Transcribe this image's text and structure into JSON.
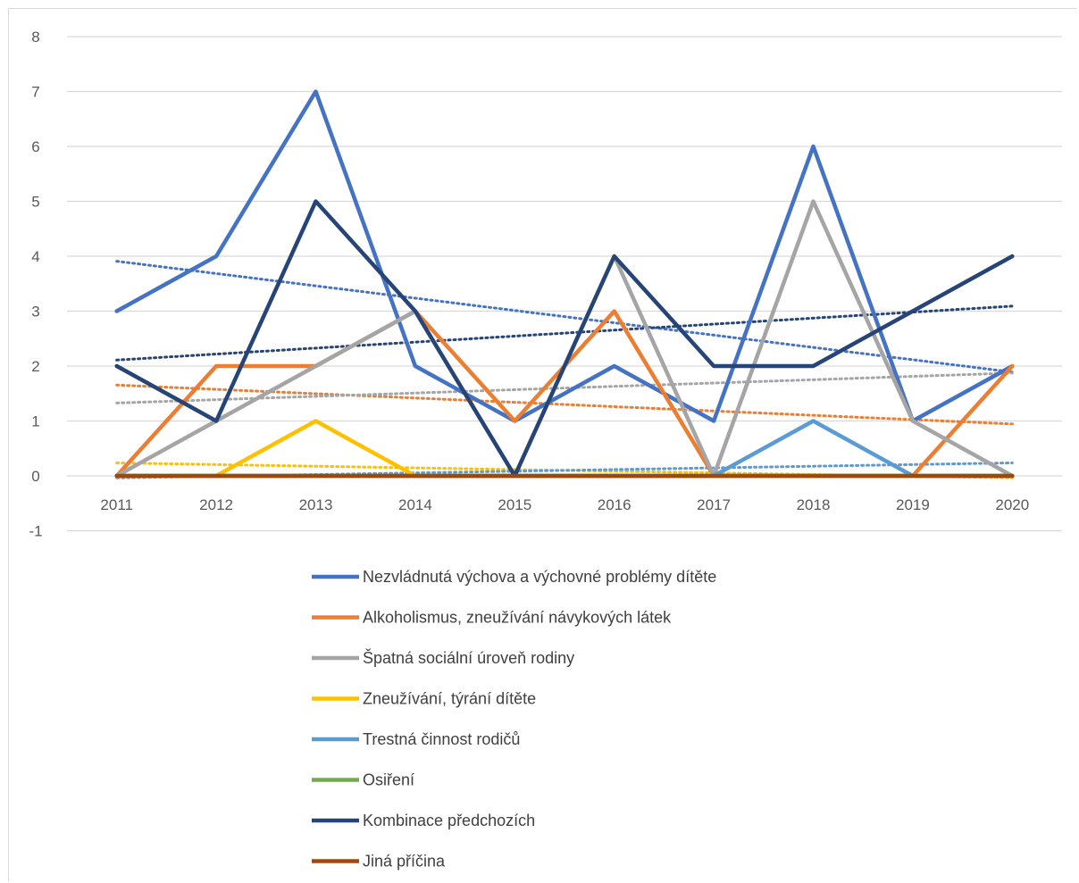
{
  "chart_data": {
    "type": "line",
    "title": "",
    "xlabel": "",
    "ylabel": "",
    "x": [
      "2011",
      "2012",
      "2013",
      "2014",
      "2015",
      "2016",
      "2017",
      "2018",
      "2019",
      "2020"
    ],
    "ylim": [
      -1,
      8
    ],
    "yticks": [
      "-1",
      "0",
      "1",
      "2",
      "3",
      "4",
      "5",
      "6",
      "7",
      "8"
    ],
    "grid": true,
    "legend_position": "bottom",
    "trendlines": "linear, dotted, one per series",
    "series": [
      {
        "name": "Nezvládnutá výchova a výchovné problémy dítěte",
        "color": "#4472C4",
        "values": [
          3,
          4,
          7,
          2,
          1,
          2,
          1,
          6,
          1,
          2
        ]
      },
      {
        "name": "Alkoholismus, zneužívání návykových látek",
        "color": "#ED7D31",
        "values": [
          0,
          2,
          2,
          3,
          1,
          3,
          0,
          0,
          0,
          2
        ]
      },
      {
        "name": "Špatná sociální úroveň rodiny",
        "color": "#A5A5A5",
        "values": [
          0,
          1,
          2,
          3,
          0,
          4,
          0,
          5,
          1,
          0
        ]
      },
      {
        "name": "Zneužívání, týrání dítěte",
        "color": "#FFC000",
        "values": [
          0,
          0,
          1,
          0,
          0,
          0,
          0,
          0,
          0,
          0
        ]
      },
      {
        "name": "Trestná činnost rodičů",
        "color": "#5B9BD5",
        "values": [
          0,
          0,
          0,
          0,
          0,
          0,
          0,
          1,
          0,
          0
        ]
      },
      {
        "name": "Osiření",
        "color": "#70AD47",
        "values": [
          0,
          0,
          0,
          0,
          0,
          0,
          0,
          0,
          0,
          0
        ]
      },
      {
        "name": "Kombinace předchozích",
        "color": "#264478",
        "values": [
          2,
          1,
          5,
          3,
          0,
          4,
          2,
          2,
          3,
          4
        ]
      },
      {
        "name": "Jiná příčina",
        "color": "#9E480E",
        "values": [
          0,
          0,
          0,
          0,
          0,
          0,
          0,
          0,
          0,
          0
        ]
      }
    ]
  }
}
